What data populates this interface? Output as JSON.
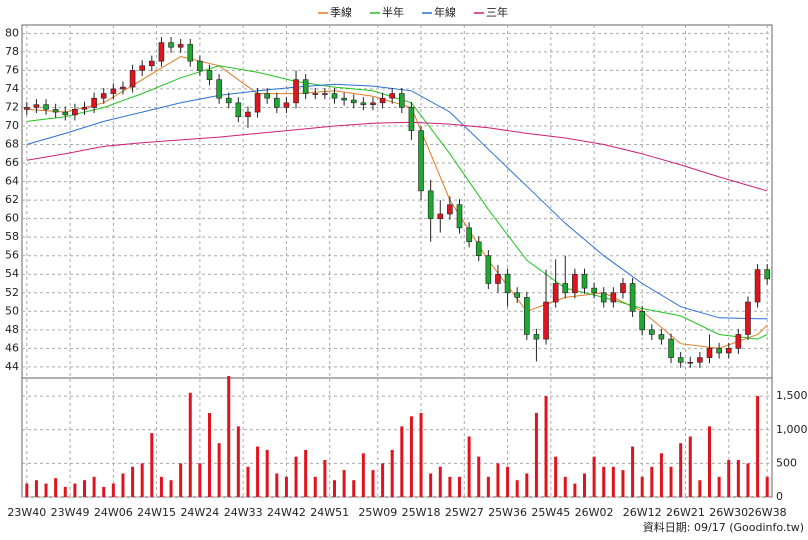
{
  "chart_data": {
    "type": "candlestick",
    "xlim": [
      -1,
      155
    ],
    "xticks": [
      {
        "value": 0,
        "label": "23W40"
      },
      {
        "value": 9,
        "label": "23W49"
      },
      {
        "value": 18,
        "label": "24W06"
      },
      {
        "value": 27,
        "label": "24W15"
      },
      {
        "value": 36,
        "label": "24W24"
      },
      {
        "value": 45,
        "label": "24W33"
      },
      {
        "value": 54,
        "label": "24W42"
      },
      {
        "value": 63,
        "label": "24W51"
      },
      {
        "value": 73,
        "label": "25W09"
      },
      {
        "value": 82,
        "label": "25W18"
      },
      {
        "value": 91,
        "label": "25W27"
      },
      {
        "value": 100,
        "label": "25W36"
      },
      {
        "value": 109,
        "label": "25W45"
      },
      {
        "value": 118,
        "label": "26W02"
      },
      {
        "value": 128,
        "label": "26W12"
      },
      {
        "value": 137,
        "label": "26W21"
      },
      {
        "value": 146,
        "label": "26W30"
      },
      {
        "value": 154,
        "label": "26W38"
      }
    ],
    "ylim": [
      42.8,
      80.9
    ],
    "yticks": [
      44,
      46,
      48,
      50,
      52,
      54,
      56,
      58,
      60,
      62,
      64,
      66,
      68,
      70,
      72,
      74,
      76,
      78,
      80
    ],
    "grid": true,
    "candles": {
      "up_color": "#e0141e",
      "down_color": "#1fa831",
      "x": [
        0,
        2,
        4,
        6,
        8,
        10,
        12,
        14,
        16,
        18,
        20,
        22,
        24,
        26,
        28,
        30,
        32,
        34,
        36,
        38,
        40,
        42,
        44,
        46,
        48,
        50,
        52,
        54,
        56,
        58,
        60,
        62,
        64,
        66,
        68,
        70,
        72,
        74,
        76,
        78,
        80,
        82,
        84,
        86,
        88,
        90,
        92,
        94,
        96,
        98,
        100,
        102,
        104,
        106,
        108,
        110,
        112,
        114,
        116,
        118,
        120,
        122,
        124,
        126,
        128,
        130,
        132,
        134,
        136,
        138,
        140,
        142,
        144,
        146,
        148,
        150,
        152,
        154
      ],
      "open": [
        71.8,
        72,
        72.3,
        71.8,
        71.5,
        71.2,
        71.8,
        72,
        73,
        73.5,
        74,
        74.2,
        76,
        76.5,
        77,
        79,
        78.5,
        78.8,
        77,
        76,
        75,
        73,
        72.5,
        71,
        71.5,
        73.5,
        73,
        72,
        72.5,
        75,
        73.5,
        73.5,
        73.5,
        73,
        72.8,
        72.5,
        72.3,
        72.5,
        73,
        73.5,
        72,
        69.5,
        63,
        60,
        60.5,
        61.5,
        59,
        57.5,
        56,
        53,
        54,
        52,
        51.5,
        47.5,
        47,
        51,
        53,
        52,
        54,
        52.5,
        52,
        51,
        52,
        53,
        50,
        48,
        47.5,
        47,
        45,
        44.5,
        44.5,
        45,
        46,
        45.5,
        46,
        47.5,
        51,
        54.5
      ],
      "high": [
        72.6,
        72.9,
        72.9,
        72.4,
        72.1,
        72.4,
        72.6,
        73.6,
        74.1,
        74.6,
        74.8,
        76.6,
        77.1,
        77.6,
        79.6,
        79.6,
        79.4,
        79.4,
        77.6,
        76.6,
        75.6,
        73.6,
        73.1,
        72.1,
        74.1,
        74.1,
        73.6,
        73.1,
        76,
        75.6,
        74.1,
        74.1,
        74.1,
        73.6,
        73.4,
        73.1,
        73.1,
        73.6,
        74.1,
        74.1,
        72.6,
        70,
        64.2,
        62,
        62.4,
        62.1,
        59.6,
        58.1,
        56.6,
        55,
        54.6,
        52.6,
        52.1,
        48.1,
        54.5,
        55.6,
        56,
        54.6,
        54.6,
        53.1,
        52.6,
        52.6,
        53.6,
        53.6,
        50.6,
        48.6,
        48.1,
        47.6,
        45.6,
        45.1,
        45.6,
        47.5,
        46.6,
        46.6,
        48.1,
        51.6,
        55.1,
        55.1
      ],
      "low": [
        71.2,
        71.4,
        71.2,
        70.9,
        70.6,
        70.6,
        71.2,
        71.4,
        72.4,
        72.9,
        73.4,
        73.6,
        75.4,
        75.9,
        76.4,
        77.9,
        77.9,
        76.4,
        75.4,
        74.4,
        72.4,
        71.9,
        70.4,
        69.8,
        70.9,
        72.4,
        71.4,
        71.4,
        71.9,
        72.9,
        72.9,
        72.9,
        72.4,
        72.2,
        71.9,
        71.7,
        71.7,
        71.9,
        72.4,
        71.4,
        68.5,
        62,
        57.5,
        58.5,
        59.9,
        58.4,
        56.9,
        55.4,
        52.4,
        52,
        50.5,
        50.9,
        46.9,
        44.6,
        46.4,
        50.4,
        51.4,
        51.4,
        51.9,
        51.4,
        50.4,
        50.4,
        51.4,
        49.4,
        47.4,
        46.9,
        46.4,
        44.4,
        43.9,
        43.9,
        43.9,
        44.4,
        44.9,
        44.9,
        45.4,
        46.9,
        50.4,
        52.9
      ],
      "close": [
        72,
        72.3,
        71.8,
        71.5,
        71.2,
        71.8,
        72,
        73,
        73.5,
        74,
        74.2,
        76,
        76.5,
        77,
        79,
        78.5,
        78.8,
        77,
        76,
        75,
        73,
        72.5,
        71,
        71.5,
        73.5,
        73,
        72,
        72.5,
        75,
        73.5,
        73.5,
        73.5,
        73,
        72.8,
        72.5,
        72.3,
        72.5,
        73,
        73.5,
        72,
        69.5,
        63,
        60,
        60.5,
        61.5,
        59,
        57.5,
        56,
        53,
        54,
        52,
        51.5,
        47.5,
        47,
        51,
        53,
        52,
        54,
        52.5,
        52,
        51,
        52,
        53,
        50,
        48,
        47.5,
        47,
        45,
        44.5,
        44.5,
        45,
        46,
        45.5,
        46,
        47.5,
        51,
        54.5,
        53.5
      ]
    },
    "series": [
      {
        "name": "季線",
        "color": "#e07a1f",
        "x": [
          0,
          8,
          16,
          24,
          32,
          40,
          48,
          56,
          64,
          72,
          80,
          88,
          96,
          104,
          112,
          120,
          128,
          136,
          144,
          152,
          154
        ],
        "values": [
          71.8,
          71.5,
          72.5,
          75,
          77.5,
          76.5,
          73.5,
          73.5,
          73.8,
          73.2,
          72,
          62,
          55.5,
          50,
          51.5,
          52,
          50,
          46.5,
          46,
          47.5,
          48.5
        ]
      },
      {
        "name": "半年",
        "color": "#22c322",
        "x": [
          0,
          8,
          16,
          24,
          32,
          40,
          48,
          56,
          64,
          72,
          80,
          88,
          96,
          104,
          112,
          120,
          128,
          136,
          144,
          152,
          154
        ],
        "values": [
          70.5,
          71,
          72,
          73.5,
          75.2,
          76.5,
          75.8,
          74.8,
          74.2,
          73.8,
          72.5,
          67,
          61,
          55.5,
          52.5,
          51.5,
          50.3,
          49.5,
          47.5,
          47,
          47.5
        ]
      },
      {
        "name": "年線",
        "color": "#2a6fd6",
        "x": [
          0,
          8,
          16,
          24,
          32,
          40,
          48,
          56,
          64,
          72,
          80,
          88,
          96,
          104,
          112,
          120,
          128,
          136,
          144,
          152,
          154
        ],
        "values": [
          68,
          69.2,
          70.5,
          71.5,
          72.5,
          73.3,
          73.8,
          74.2,
          74.5,
          74.3,
          73.8,
          71.5,
          67.5,
          63.5,
          59.5,
          56,
          53,
          50.5,
          49.3,
          49.2,
          49.2
        ]
      },
      {
        "name": "三年",
        "color": "#d0207a",
        "x": [
          0,
          8,
          16,
          24,
          32,
          40,
          48,
          56,
          64,
          72,
          80,
          88,
          96,
          104,
          112,
          120,
          128,
          136,
          144,
          152,
          154
        ],
        "values": [
          66.3,
          67,
          67.8,
          68.2,
          68.5,
          68.8,
          69.2,
          69.6,
          70,
          70.3,
          70.4,
          70.2,
          69.8,
          69.2,
          68.7,
          68,
          67,
          65.8,
          64.5,
          63.3,
          63
        ]
      }
    ],
    "volume": {
      "color": "#e0141e",
      "ylim": [
        0,
        1740
      ],
      "yticks": [
        0,
        500,
        {
          "value": 1000,
          "label": "1,000"
        },
        {
          "value": 1500,
          "label": "1,500"
        }
      ],
      "values": [
        200,
        250,
        200,
        280,
        150,
        200,
        250,
        300,
        150,
        200,
        350,
        450,
        500,
        950,
        300,
        250,
        500,
        1550,
        500,
        1250,
        800,
        1800,
        1050,
        450,
        750,
        700,
        350,
        300,
        600,
        700,
        300,
        550,
        250,
        400,
        250,
        650,
        400,
        500,
        700,
        1050,
        1200,
        1250,
        350,
        450,
        300,
        300,
        900,
        600,
        300,
        500,
        450,
        250,
        350,
        1250,
        1500,
        600,
        300,
        200,
        350,
        600,
        450,
        450,
        400,
        750,
        300,
        450,
        650,
        450,
        800,
        900,
        250,
        1050,
        300,
        550,
        550,
        500,
        1500,
        300
      ]
    },
    "footer": "資料日期: 09/17 (Goodinfo.tw)"
  }
}
